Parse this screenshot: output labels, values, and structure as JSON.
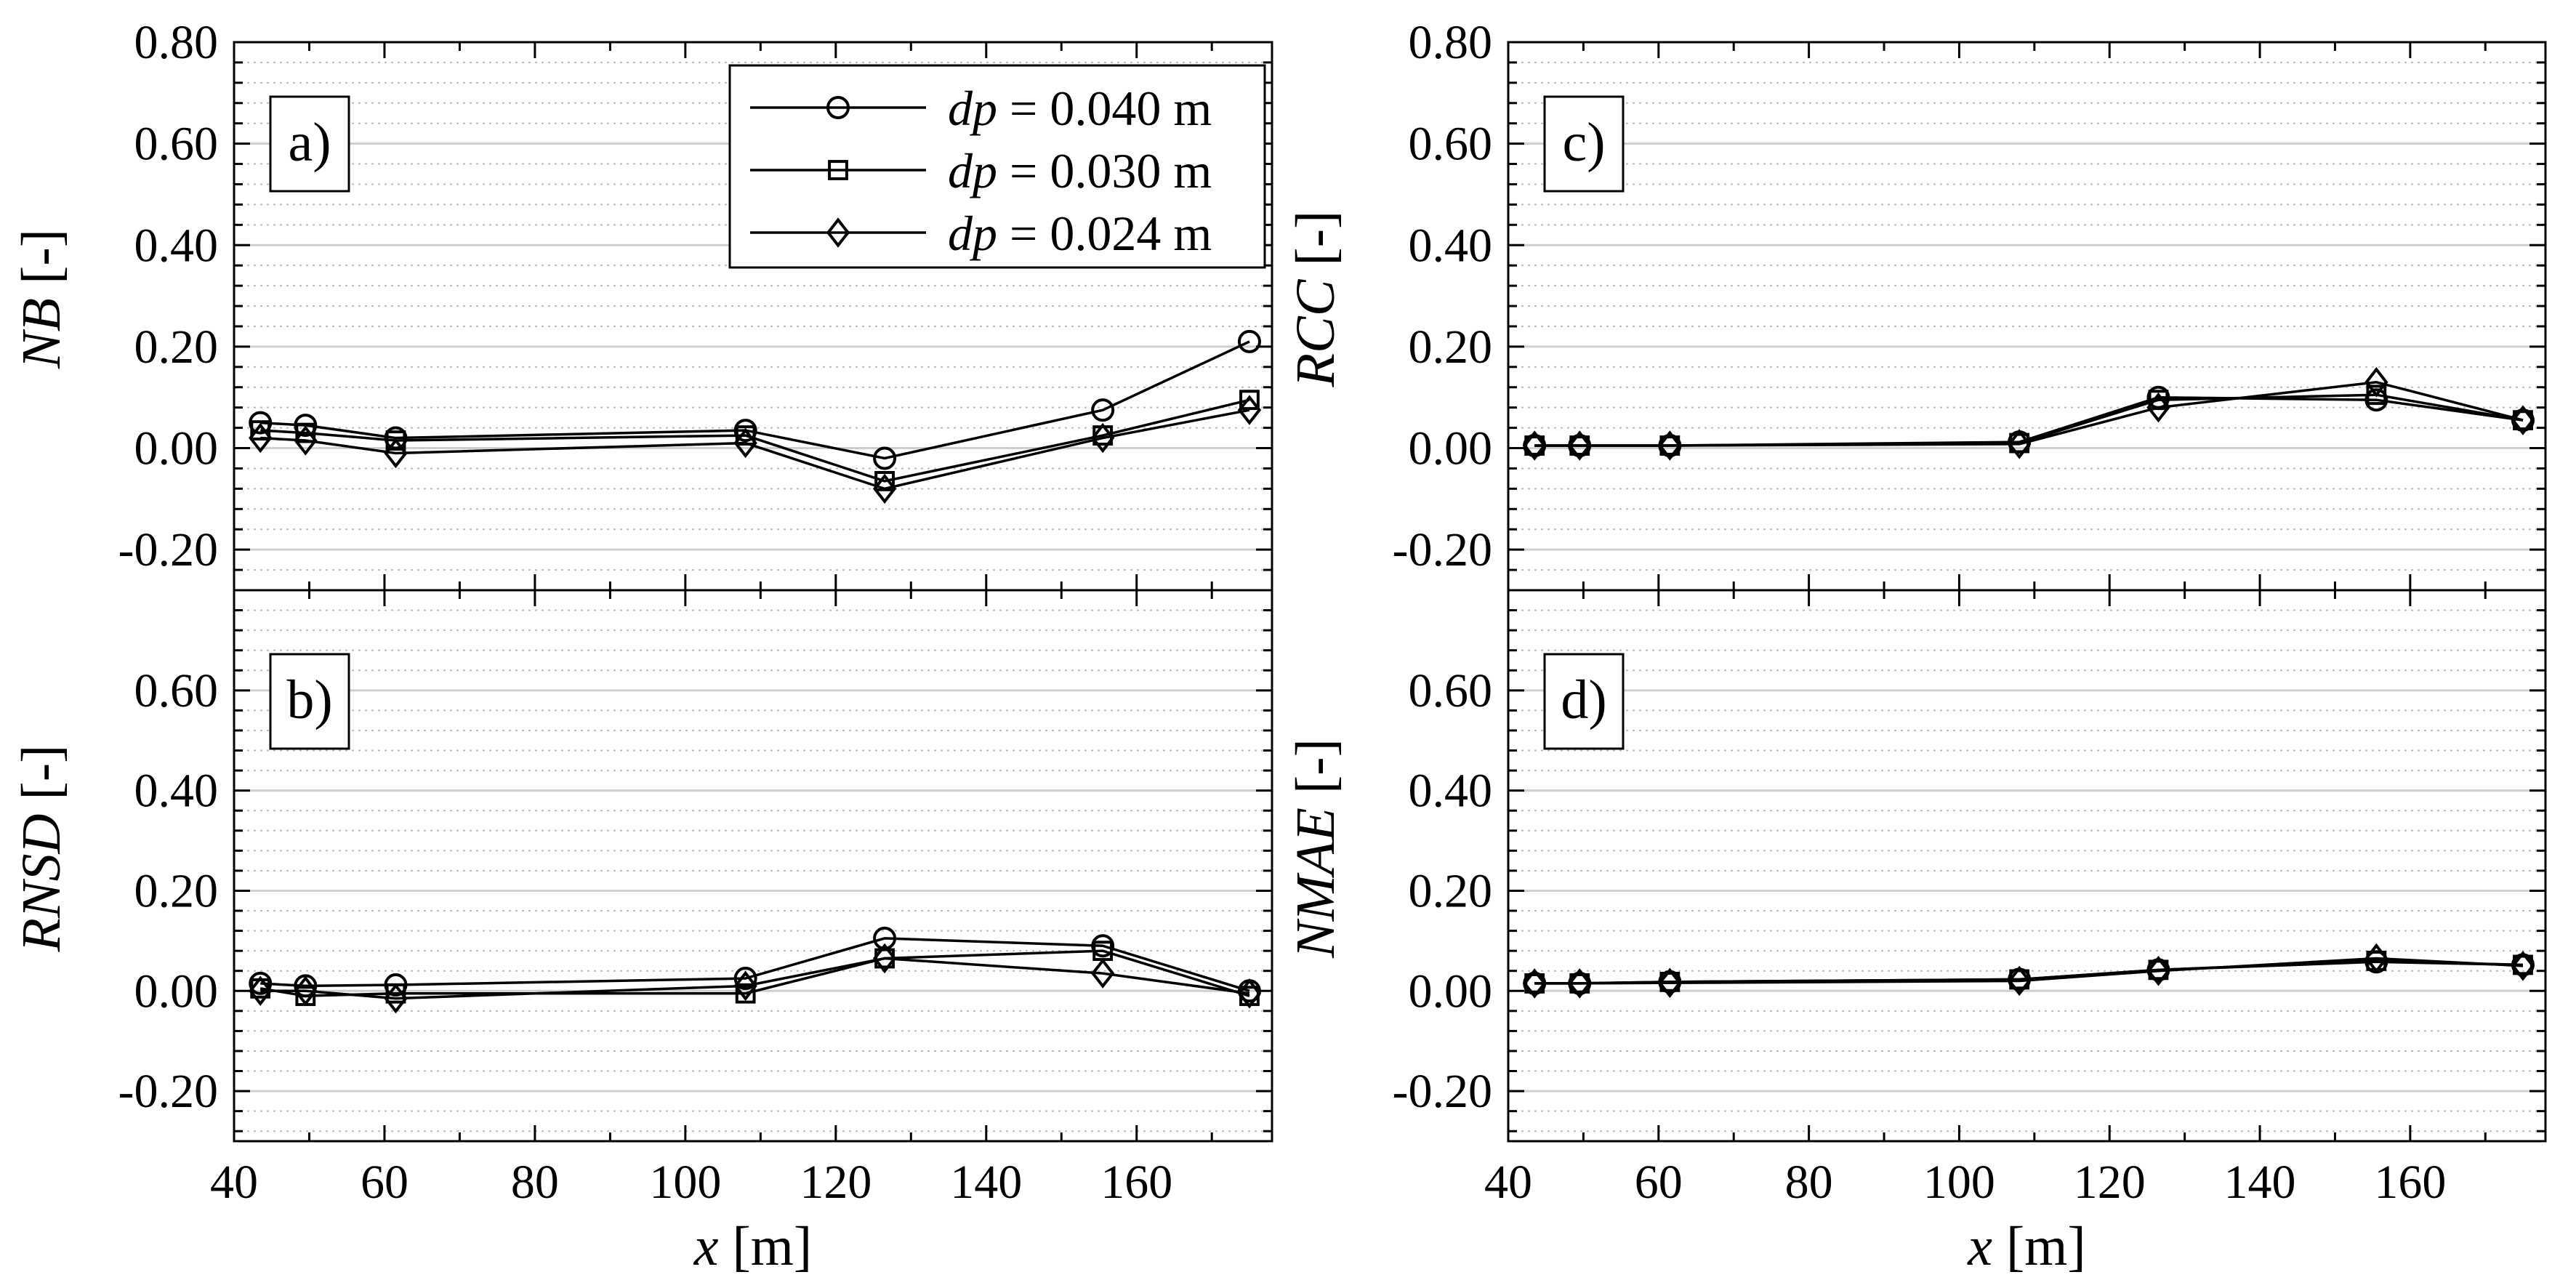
{
  "figure": {
    "x_tick_labels": [
      "40",
      "60",
      "80",
      "100",
      "120",
      "140",
      "160"
    ],
    "y_tick_labels_top": [
      "0.80",
      "0.60",
      "0.40",
      "0.20",
      "0.00",
      "-0.20"
    ],
    "y_tick_labels_bottom": [
      "0.60",
      "0.40",
      "0.20",
      "0.00",
      "-0.20"
    ]
  },
  "legend": {
    "entries": [
      {
        "var": "dp",
        "text": " = 0.040 m",
        "marker": "circle"
      },
      {
        "var": "dp",
        "text": " = 0.030 m",
        "marker": "square"
      },
      {
        "var": "dp",
        "text": " = 0.024 m",
        "marker": "diamond"
      }
    ]
  },
  "chart_data": [
    {
      "type": "line",
      "panel_label": "a)",
      "ylabel_var": "NB",
      "ylabel_unit": " [-]",
      "xlabel_var": "",
      "xlabel_unit": "",
      "xlim": [
        40,
        178
      ],
      "ylim": [
        -0.28,
        0.8
      ],
      "x": [
        43.5,
        49.5,
        61.5,
        108,
        126.5,
        155.5,
        175
      ],
      "series": [
        {
          "name": "dp = 0.040 m",
          "marker": "circle",
          "values": [
            0.05,
            0.045,
            0.02,
            0.035,
            -0.02,
            0.075,
            0.21
          ]
        },
        {
          "name": "dp = 0.030 m",
          "marker": "square",
          "values": [
            0.035,
            0.03,
            0.015,
            0.025,
            -0.065,
            0.025,
            0.095
          ]
        },
        {
          "name": "dp = 0.024 m",
          "marker": "diamond",
          "values": [
            0.02,
            0.015,
            -0.01,
            0.01,
            -0.08,
            0.02,
            0.075
          ]
        }
      ]
    },
    {
      "type": "line",
      "panel_label": "b)",
      "ylabel_var": "RNSD",
      "ylabel_unit": " [-]",
      "xlabel_var": "x",
      "xlabel_unit": " [m]",
      "xlim": [
        40,
        178
      ],
      "ylim": [
        -0.3,
        0.8
      ],
      "x": [
        43.5,
        49.5,
        61.5,
        108,
        126.5,
        155.5,
        175
      ],
      "series": [
        {
          "name": "dp = 0.040 m",
          "marker": "circle",
          "values": [
            0.015,
            0.01,
            0.012,
            0.025,
            0.105,
            0.09,
            0.0
          ]
        },
        {
          "name": "dp = 0.030 m",
          "marker": "square",
          "values": [
            0.005,
            -0.01,
            -0.005,
            -0.005,
            0.065,
            0.08,
            -0.01
          ]
        },
        {
          "name": "dp = 0.024 m",
          "marker": "diamond",
          "values": [
            0.0,
            0.0,
            -0.015,
            0.01,
            0.065,
            0.035,
            -0.005
          ]
        }
      ]
    },
    {
      "type": "line",
      "panel_label": "c)",
      "ylabel_var": "RCC",
      "ylabel_unit": " [-]",
      "xlabel_var": "",
      "xlabel_unit": "",
      "xlim": [
        40,
        178
      ],
      "ylim": [
        -0.28,
        0.8
      ],
      "x": [
        43.5,
        49.5,
        61.5,
        108,
        126.5,
        155.5,
        175
      ],
      "series": [
        {
          "name": "dp = 0.040 m",
          "marker": "circle",
          "values": [
            0.005,
            0.005,
            0.005,
            0.012,
            0.1,
            0.095,
            0.055
          ]
        },
        {
          "name": "dp = 0.030 m",
          "marker": "square",
          "values": [
            0.005,
            0.005,
            0.005,
            0.01,
            0.095,
            0.105,
            0.055
          ]
        },
        {
          "name": "dp = 0.024 m",
          "marker": "diamond",
          "values": [
            0.005,
            0.005,
            0.005,
            0.008,
            0.08,
            0.13,
            0.055
          ]
        }
      ]
    },
    {
      "type": "line",
      "panel_label": "d)",
      "ylabel_var": "NMAE",
      "ylabel_unit": " [-]",
      "xlabel_var": "x",
      "xlabel_unit": " [m]",
      "xlim": [
        40,
        178
      ],
      "ylim": [
        -0.3,
        0.8
      ],
      "x": [
        43.5,
        49.5,
        61.5,
        108,
        126.5,
        155.5,
        175
      ],
      "series": [
        {
          "name": "dp = 0.040 m",
          "marker": "circle",
          "values": [
            0.015,
            0.015,
            0.018,
            0.023,
            0.042,
            0.058,
            0.052
          ]
        },
        {
          "name": "dp = 0.030 m",
          "marker": "square",
          "values": [
            0.015,
            0.015,
            0.018,
            0.023,
            0.042,
            0.06,
            0.052
          ]
        },
        {
          "name": "dp = 0.024 m",
          "marker": "diamond",
          "values": [
            0.015,
            0.015,
            0.016,
            0.02,
            0.04,
            0.065,
            0.05
          ]
        }
      ]
    }
  ]
}
